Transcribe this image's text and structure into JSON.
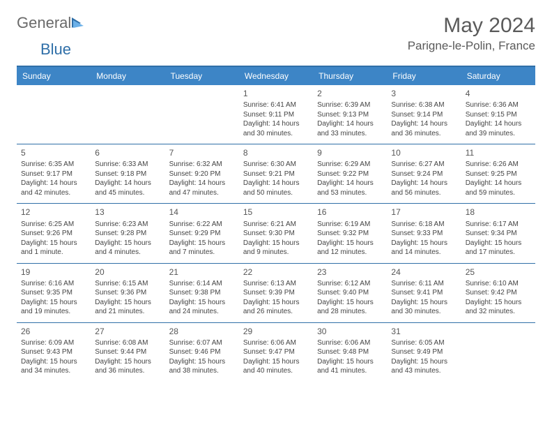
{
  "logo": {
    "general": "General",
    "blue": "Blue"
  },
  "title": "May 2024",
  "location": "Parigne-le-Polin, France",
  "colors": {
    "header_bg": "#3d85c6",
    "border": "#2f6fa8",
    "logo_gray": "#6a6a6a",
    "logo_blue": "#2f6fa8",
    "text": "#5a5a5a"
  },
  "weekdays": [
    "Sunday",
    "Monday",
    "Tuesday",
    "Wednesday",
    "Thursday",
    "Friday",
    "Saturday"
  ],
  "weeks": [
    [
      null,
      null,
      null,
      {
        "n": "1",
        "sunrise": "Sunrise: 6:41 AM",
        "sunset": "Sunset: 9:11 PM",
        "daylight": "Daylight: 14 hours and 30 minutes."
      },
      {
        "n": "2",
        "sunrise": "Sunrise: 6:39 AM",
        "sunset": "Sunset: 9:13 PM",
        "daylight": "Daylight: 14 hours and 33 minutes."
      },
      {
        "n": "3",
        "sunrise": "Sunrise: 6:38 AM",
        "sunset": "Sunset: 9:14 PM",
        "daylight": "Daylight: 14 hours and 36 minutes."
      },
      {
        "n": "4",
        "sunrise": "Sunrise: 6:36 AM",
        "sunset": "Sunset: 9:15 PM",
        "daylight": "Daylight: 14 hours and 39 minutes."
      }
    ],
    [
      {
        "n": "5",
        "sunrise": "Sunrise: 6:35 AM",
        "sunset": "Sunset: 9:17 PM",
        "daylight": "Daylight: 14 hours and 42 minutes."
      },
      {
        "n": "6",
        "sunrise": "Sunrise: 6:33 AM",
        "sunset": "Sunset: 9:18 PM",
        "daylight": "Daylight: 14 hours and 45 minutes."
      },
      {
        "n": "7",
        "sunrise": "Sunrise: 6:32 AM",
        "sunset": "Sunset: 9:20 PM",
        "daylight": "Daylight: 14 hours and 47 minutes."
      },
      {
        "n": "8",
        "sunrise": "Sunrise: 6:30 AM",
        "sunset": "Sunset: 9:21 PM",
        "daylight": "Daylight: 14 hours and 50 minutes."
      },
      {
        "n": "9",
        "sunrise": "Sunrise: 6:29 AM",
        "sunset": "Sunset: 9:22 PM",
        "daylight": "Daylight: 14 hours and 53 minutes."
      },
      {
        "n": "10",
        "sunrise": "Sunrise: 6:27 AM",
        "sunset": "Sunset: 9:24 PM",
        "daylight": "Daylight: 14 hours and 56 minutes."
      },
      {
        "n": "11",
        "sunrise": "Sunrise: 6:26 AM",
        "sunset": "Sunset: 9:25 PM",
        "daylight": "Daylight: 14 hours and 59 minutes."
      }
    ],
    [
      {
        "n": "12",
        "sunrise": "Sunrise: 6:25 AM",
        "sunset": "Sunset: 9:26 PM",
        "daylight": "Daylight: 15 hours and 1 minute."
      },
      {
        "n": "13",
        "sunrise": "Sunrise: 6:23 AM",
        "sunset": "Sunset: 9:28 PM",
        "daylight": "Daylight: 15 hours and 4 minutes."
      },
      {
        "n": "14",
        "sunrise": "Sunrise: 6:22 AM",
        "sunset": "Sunset: 9:29 PM",
        "daylight": "Daylight: 15 hours and 7 minutes."
      },
      {
        "n": "15",
        "sunrise": "Sunrise: 6:21 AM",
        "sunset": "Sunset: 9:30 PM",
        "daylight": "Daylight: 15 hours and 9 minutes."
      },
      {
        "n": "16",
        "sunrise": "Sunrise: 6:19 AM",
        "sunset": "Sunset: 9:32 PM",
        "daylight": "Daylight: 15 hours and 12 minutes."
      },
      {
        "n": "17",
        "sunrise": "Sunrise: 6:18 AM",
        "sunset": "Sunset: 9:33 PM",
        "daylight": "Daylight: 15 hours and 14 minutes."
      },
      {
        "n": "18",
        "sunrise": "Sunrise: 6:17 AM",
        "sunset": "Sunset: 9:34 PM",
        "daylight": "Daylight: 15 hours and 17 minutes."
      }
    ],
    [
      {
        "n": "19",
        "sunrise": "Sunrise: 6:16 AM",
        "sunset": "Sunset: 9:35 PM",
        "daylight": "Daylight: 15 hours and 19 minutes."
      },
      {
        "n": "20",
        "sunrise": "Sunrise: 6:15 AM",
        "sunset": "Sunset: 9:36 PM",
        "daylight": "Daylight: 15 hours and 21 minutes."
      },
      {
        "n": "21",
        "sunrise": "Sunrise: 6:14 AM",
        "sunset": "Sunset: 9:38 PM",
        "daylight": "Daylight: 15 hours and 24 minutes."
      },
      {
        "n": "22",
        "sunrise": "Sunrise: 6:13 AM",
        "sunset": "Sunset: 9:39 PM",
        "daylight": "Daylight: 15 hours and 26 minutes."
      },
      {
        "n": "23",
        "sunrise": "Sunrise: 6:12 AM",
        "sunset": "Sunset: 9:40 PM",
        "daylight": "Daylight: 15 hours and 28 minutes."
      },
      {
        "n": "24",
        "sunrise": "Sunrise: 6:11 AM",
        "sunset": "Sunset: 9:41 PM",
        "daylight": "Daylight: 15 hours and 30 minutes."
      },
      {
        "n": "25",
        "sunrise": "Sunrise: 6:10 AM",
        "sunset": "Sunset: 9:42 PM",
        "daylight": "Daylight: 15 hours and 32 minutes."
      }
    ],
    [
      {
        "n": "26",
        "sunrise": "Sunrise: 6:09 AM",
        "sunset": "Sunset: 9:43 PM",
        "daylight": "Daylight: 15 hours and 34 minutes."
      },
      {
        "n": "27",
        "sunrise": "Sunrise: 6:08 AM",
        "sunset": "Sunset: 9:44 PM",
        "daylight": "Daylight: 15 hours and 36 minutes."
      },
      {
        "n": "28",
        "sunrise": "Sunrise: 6:07 AM",
        "sunset": "Sunset: 9:46 PM",
        "daylight": "Daylight: 15 hours and 38 minutes."
      },
      {
        "n": "29",
        "sunrise": "Sunrise: 6:06 AM",
        "sunset": "Sunset: 9:47 PM",
        "daylight": "Daylight: 15 hours and 40 minutes."
      },
      {
        "n": "30",
        "sunrise": "Sunrise: 6:06 AM",
        "sunset": "Sunset: 9:48 PM",
        "daylight": "Daylight: 15 hours and 41 minutes."
      },
      {
        "n": "31",
        "sunrise": "Sunrise: 6:05 AM",
        "sunset": "Sunset: 9:49 PM",
        "daylight": "Daylight: 15 hours and 43 minutes."
      },
      null
    ]
  ]
}
